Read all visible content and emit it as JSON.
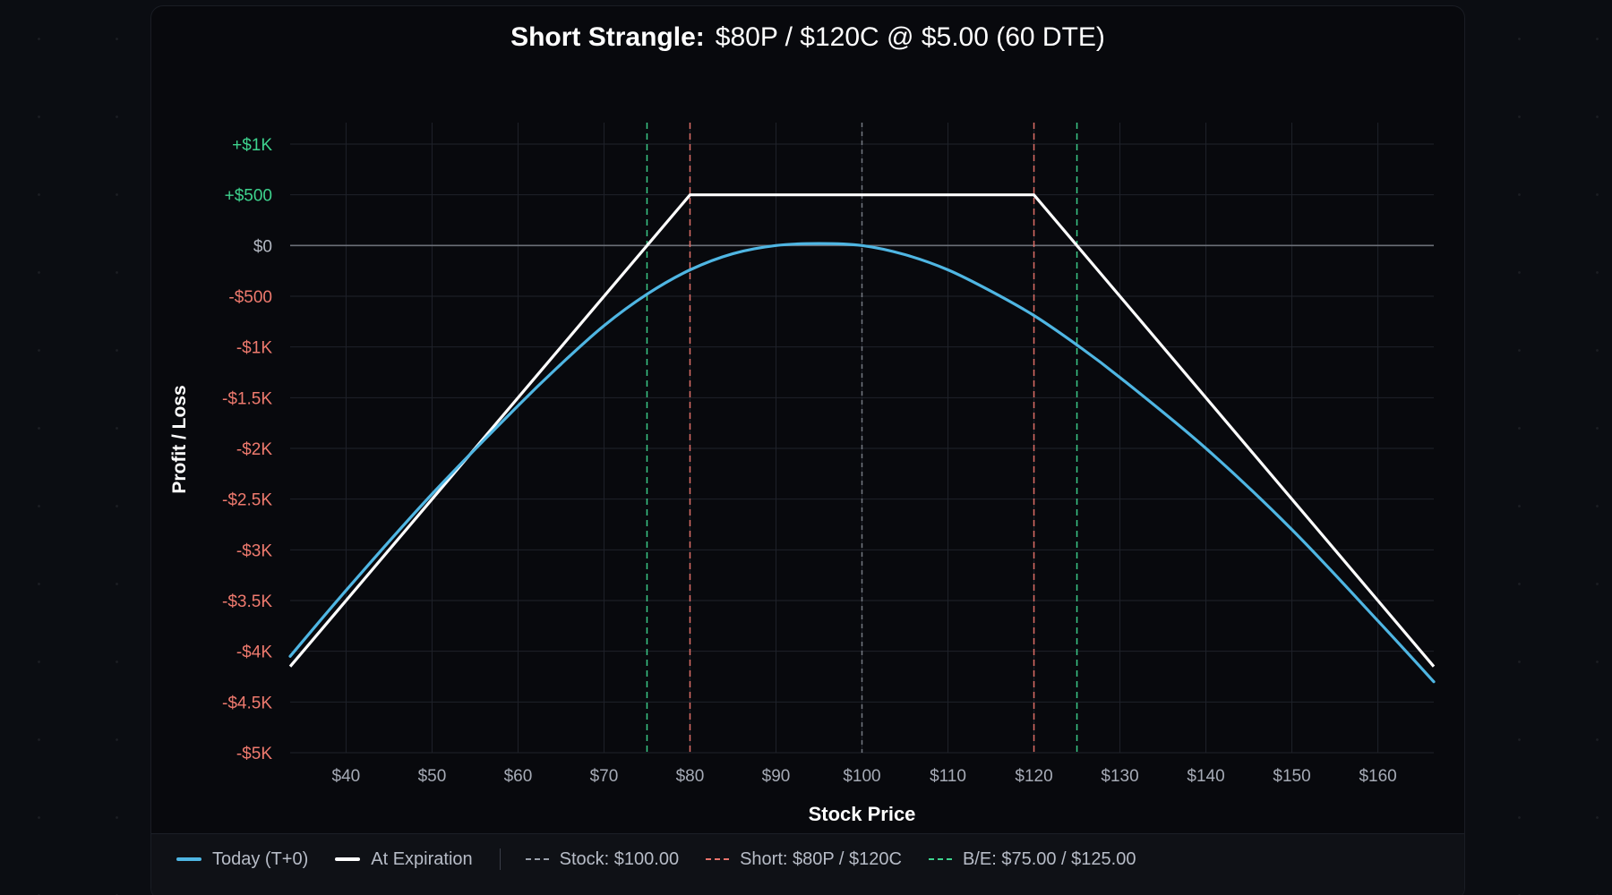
{
  "title": {
    "bold": "Short Strangle:",
    "rest": "$80P / $120C @ $5.00 (60 DTE)"
  },
  "colors": {
    "today": "#4fb6e3",
    "expiration": "#ffffff",
    "stock_line": "#9aa0ab",
    "short_strike": "#e8736b",
    "breakeven": "#3ed38e",
    "positive_tick": "#3ed38e",
    "negative_tick": "#ef7a6e",
    "zero_tick": "#b3b8c2",
    "x_tick": "#a6abb6",
    "grid": "#1f222a",
    "zero_line": "#6b6f78"
  },
  "chart_data": {
    "type": "line",
    "xlabel": "Stock Price",
    "ylabel": "Profit / Loss",
    "xlim": [
      33.5,
      166.5
    ],
    "ylim": [
      -5000,
      1000
    ],
    "x_ticks": [
      40,
      50,
      60,
      70,
      80,
      90,
      100,
      110,
      120,
      130,
      140,
      150,
      160
    ],
    "x_tick_labels": [
      "$40",
      "$50",
      "$60",
      "$70",
      "$80",
      "$90",
      "$100",
      "$110",
      "$120",
      "$130",
      "$140",
      "$150",
      "$160"
    ],
    "y_ticks": [
      1000,
      500,
      0,
      -500,
      -1000,
      -1500,
      -2000,
      -2500,
      -3000,
      -3500,
      -4000,
      -4500,
      -5000
    ],
    "y_tick_labels": [
      "+$1K",
      "+$500",
      "$0",
      "-$500",
      "-$1K",
      "-$1.5K",
      "-$2K",
      "-$2.5K",
      "-$3K",
      "-$3.5K",
      "-$4K",
      "-$4.5K",
      "-$5K"
    ],
    "grid": true,
    "series": [
      {
        "name": "Today (T+0)",
        "x": [
          33.5,
          40,
          50,
          60,
          65,
          70,
          75,
          80,
          85,
          90,
          95,
          100,
          105,
          110,
          115,
          120,
          125,
          130,
          140,
          150,
          160,
          166.5
        ],
        "y": [
          -4050,
          -3400,
          -2450,
          -1580,
          -1170,
          -790,
          -480,
          -240,
          -80,
          0,
          20,
          0,
          -90,
          -240,
          -450,
          -690,
          -980,
          -1300,
          -2000,
          -2800,
          -3700,
          -4300
        ]
      },
      {
        "name": "At Expiration",
        "x": [
          33.5,
          80,
          120,
          166.5
        ],
        "y": [
          -4150,
          500,
          500,
          -4150
        ]
      }
    ],
    "vertical_lines": [
      {
        "x": 75,
        "kind": "breakeven"
      },
      {
        "x": 80,
        "kind": "short_strike"
      },
      {
        "x": 100,
        "kind": "stock"
      },
      {
        "x": 120,
        "kind": "short_strike"
      },
      {
        "x": 125,
        "kind": "breakeven"
      }
    ],
    "legend": {
      "placement": "bottom",
      "items": [
        {
          "label": "Today (T+0)",
          "style": "solid",
          "kind": "today"
        },
        {
          "label": "At Expiration",
          "style": "solid",
          "kind": "expiration"
        },
        {
          "label": "Stock: $100.00",
          "style": "dashed",
          "kind": "stock"
        },
        {
          "label": "Short: $80P / $120C",
          "style": "dashed",
          "kind": "short_strike"
        },
        {
          "label": "B/E: $75.00 / $125.00",
          "style": "dashed",
          "kind": "breakeven"
        }
      ]
    }
  }
}
